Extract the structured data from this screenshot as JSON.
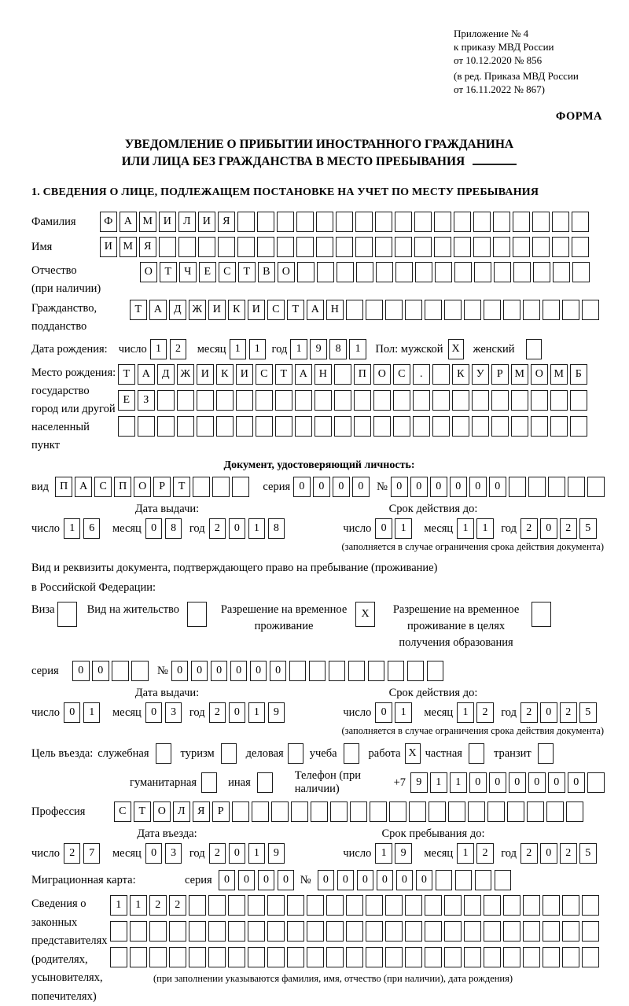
{
  "header": {
    "appendix_lines": [
      "Приложение № 4",
      "к приказу МВД России",
      "от 10.12.2020 № 856"
    ],
    "amendment_lines": [
      "(в ред. Приказа МВД России",
      "от 16.11.2022 № 867)"
    ],
    "form_label": "ФОРМА"
  },
  "title": {
    "line1": "УВЕДОМЛЕНИЕ О ПРИБЫТИИ ИНОСТРАННОГО ГРАЖДАНИНА",
    "line2": "ИЛИ ЛИЦА БЕЗ ГРАЖДАНСТВА В МЕСТО ПРЕБЫВАНИЯ"
  },
  "section1_heading": "1. СВЕДЕНИЯ О ЛИЦЕ, ПОДЛЕЖАЩЕМ ПОСТАНОВКЕ НА УЧЕТ ПО МЕСТУ ПРЕБЫВАНИЯ",
  "labels": {
    "day": "число",
    "month": "месяц",
    "year": "год"
  },
  "person": {
    "surname_label": "Фамилия",
    "surname": "ФАМИЛИЯ",
    "name_label": "Имя",
    "name": "ИМЯ",
    "patronymic_label_1": "Отчество",
    "patronymic_label_2": "(при наличии)",
    "patronymic": "ОТЧЕСТВО",
    "citizenship_label_1": "Гражданство,",
    "citizenship_label_2": "подданство",
    "citizenship": "ТАДЖИКИСТАН",
    "birth_date_label": "Дата рождения:",
    "birth_day": "12",
    "birth_month": "11",
    "birth_year": "1981",
    "sex_male_label": "Пол: мужской",
    "sex_male": "X",
    "sex_female_label": "женский",
    "sex_female": "",
    "birth_place_label_lines": [
      "Место рождения:",
      "государство",
      "город или другой",
      "населенный пункт"
    ],
    "birth_place_row1": "ТАДЖИКИСТАН ПОС. КУРМОМБ",
    "birth_place_row2": "ЕЗ",
    "birth_place_row3": ""
  },
  "identity_doc": {
    "heading": "Документ, удостоверяющий личность:",
    "kind_label": "вид",
    "kind": "ПАСПОРТ",
    "series_label": "серия",
    "series": "0000",
    "number_label": "№",
    "number": "000000",
    "issue_label": "Дата выдачи:",
    "expiry_label": "Срок действия до:",
    "issue_day": "16",
    "issue_month": "08",
    "issue_year": "2018",
    "expiry_day": "01",
    "expiry_month": "11",
    "expiry_year": "2025",
    "note": "(заполняется в случае ограничения срока действия документа)"
  },
  "residence_doc": {
    "intro_line1": "Вид и реквизиты документа, подтверждающего право на пребывание (проживание)",
    "intro_line2": "в Российской Федерации:",
    "types": [
      {
        "label": "Виза",
        "checked": ""
      },
      {
        "label": "Вид на жительство",
        "checked": ""
      },
      {
        "label": "Разрешение на временное проживание",
        "checked": "X"
      },
      {
        "label": "Разрешение на временное проживание в целях получения образования",
        "checked": ""
      }
    ],
    "series_label": "серия",
    "series": "00",
    "number_label": "№",
    "number": "000000",
    "issue_label": "Дата выдачи:",
    "expiry_label": "Срок действия до:",
    "issue_day": "01",
    "issue_month": "03",
    "issue_year": "2019",
    "expiry_day": "01",
    "expiry_month": "12",
    "expiry_year": "2025",
    "note": "(заполняется в случае ограничения срока действия документа)"
  },
  "visit": {
    "purpose_label": "Цель въезда:",
    "purposes": [
      {
        "label": "служебная",
        "checked": ""
      },
      {
        "label": "туризм",
        "checked": ""
      },
      {
        "label": "деловая",
        "checked": ""
      },
      {
        "label": "учеба",
        "checked": ""
      },
      {
        "label": "работа",
        "checked": "X"
      },
      {
        "label": "частная",
        "checked": ""
      },
      {
        "label": "транзит",
        "checked": ""
      },
      {
        "label": "гуманитарная",
        "checked": ""
      },
      {
        "label": "иная",
        "checked": ""
      }
    ],
    "phone_label": "Телефон (при наличии)",
    "phone_prefix": "+7",
    "phone": "911000000",
    "profession_label": "Профессия",
    "profession": "СТОЛЯР",
    "entry_date_label": "Дата въезда:",
    "stay_until_label": "Срок пребывания до:",
    "entry_day": "27",
    "entry_month": "03",
    "entry_year": "2019",
    "stay_day": "19",
    "stay_month": "12",
    "stay_year": "2025"
  },
  "migration_card": {
    "label": "Миграционная карта:",
    "series_label": "серия",
    "series": "0000",
    "number_label": "№",
    "number": "000000"
  },
  "legal_reps": {
    "label_lines": [
      "Сведения о",
      "законных",
      "представителях",
      "(родителях,",
      "усыновителях,",
      "попечителях)"
    ],
    "row1": "1122",
    "row2": "",
    "row3": "",
    "note": "(при заполнении указываются фамилия, имя, отчество (при наличии), дата рождения)"
  }
}
